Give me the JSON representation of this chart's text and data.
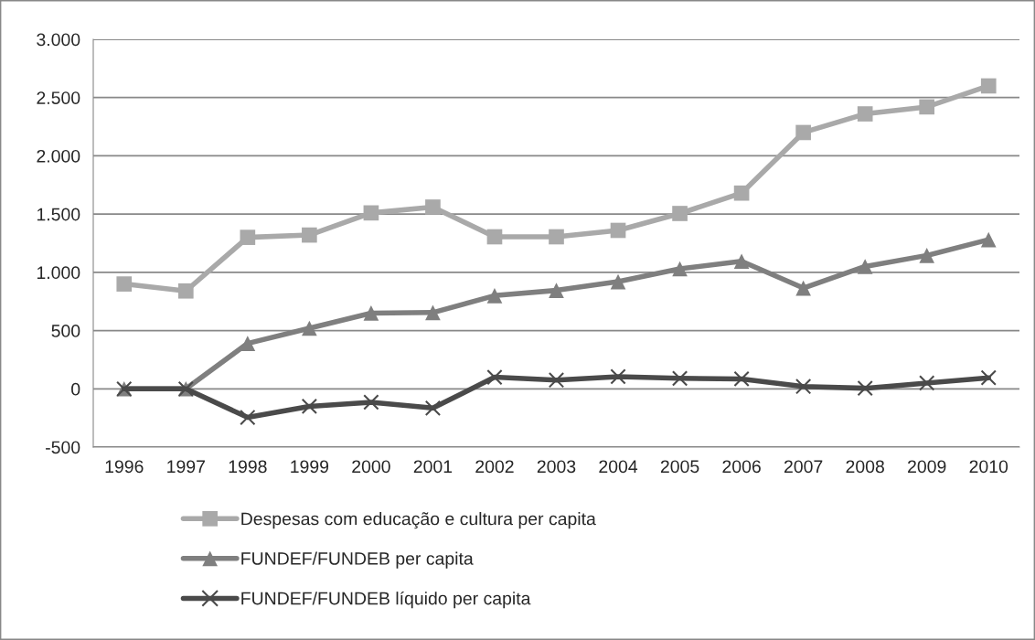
{
  "chart_data": {
    "type": "line",
    "categories": [
      "1996",
      "1997",
      "1998",
      "1999",
      "2000",
      "2001",
      "2002",
      "2003",
      "2004",
      "2005",
      "2006",
      "2007",
      "2008",
      "2009",
      "2010"
    ],
    "series": [
      {
        "name": "Despesas com educação e cultura per capita",
        "color": "#a9a9a9",
        "marker": "square",
        "values": [
          900,
          840,
          1300,
          1320,
          1510,
          1560,
          1305,
          1305,
          1360,
          1505,
          1680,
          2200,
          2360,
          2420,
          2600
        ]
      },
      {
        "name": "FUNDEF/FUNDEB per capita",
        "color": "#7f7f7f",
        "marker": "triangle",
        "values": [
          0,
          0,
          390,
          520,
          650,
          655,
          800,
          845,
          920,
          1030,
          1095,
          865,
          1050,
          1145,
          1280
        ]
      },
      {
        "name": "FUNDEF/FUNDEB líquido per capita",
        "color": "#4a4a4a",
        "marker": "cross",
        "values": [
          0,
          0,
          -245,
          -150,
          -115,
          -165,
          100,
          75,
          105,
          90,
          85,
          20,
          5,
          50,
          95
        ]
      }
    ],
    "ylim": [
      -500,
      3000
    ],
    "yticks": [
      {
        "value": -500,
        "label": "-500"
      },
      0,
      500,
      {
        "value": 1000,
        "label": "1.000"
      },
      {
        "value": 1500,
        "label": "1.500"
      },
      {
        "value": 2000,
        "label": "2.000"
      },
      {
        "value": 2500,
        "label": "2.500"
      },
      {
        "value": 3000,
        "label": "3.000"
      }
    ],
    "grid": "y",
    "legend": "bottom",
    "line_style": "solid"
  }
}
